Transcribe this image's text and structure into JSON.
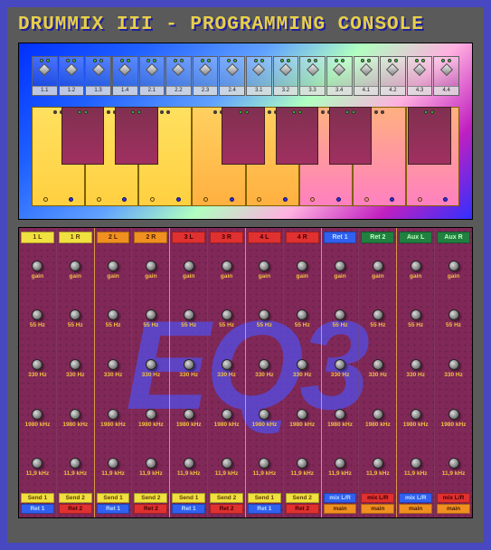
{
  "title": "DRUMMIX III - PROGRAMMING CONSOLE",
  "watermark": "EQ3",
  "pad_labels": [
    "1.1",
    "1.2",
    "1.3",
    "1.4",
    "2.1",
    "2.2",
    "2.3",
    "2.4",
    "3.1",
    "3.2",
    "3.3",
    "3.4",
    "4.1",
    "4.2",
    "4.3",
    "4.4"
  ],
  "pad_led_colors": [
    "#30e030",
    "#30e030"
  ],
  "black_key_positions": [
    7,
    19.5,
    44.5,
    57,
    69.5,
    88
  ],
  "eq": {
    "row_labels": [
      "gain",
      "55 Hz",
      "330 Hz",
      "1980 kHz",
      "11,9 kHz"
    ],
    "strips": [
      {
        "hdr": "1 L",
        "cls": "hdr-yellow",
        "f1": "Send 1",
        "f1c": "hdr-yellow",
        "f2": "Ret 1",
        "f2c": "hdr-blue"
      },
      {
        "hdr": "1 R",
        "cls": "hdr-yellow",
        "f1": "Send 2",
        "f1c": "hdr-yellow",
        "f2": "Ret 2",
        "f2c": "hdr-red"
      },
      {
        "hdr": "2 L",
        "cls": "hdr-orange",
        "f1": "Send 1",
        "f1c": "hdr-yellow",
        "f2": "Ret 1",
        "f2c": "hdr-blue"
      },
      {
        "hdr": "2 R",
        "cls": "hdr-orange",
        "f1": "Send 2",
        "f1c": "hdr-yellow",
        "f2": "Ret 2",
        "f2c": "hdr-red"
      },
      {
        "hdr": "3 L",
        "cls": "hdr-red",
        "f1": "Send 1",
        "f1c": "hdr-yellow",
        "f2": "Ret 1",
        "f2c": "hdr-blue"
      },
      {
        "hdr": "3 R",
        "cls": "hdr-red",
        "f1": "Send 2",
        "f1c": "hdr-yellow",
        "f2": "Ret 2",
        "f2c": "hdr-red"
      },
      {
        "hdr": "4 L",
        "cls": "hdr-red",
        "f1": "Send 1",
        "f1c": "hdr-yellow",
        "f2": "Ret 1",
        "f2c": "hdr-blue"
      },
      {
        "hdr": "4 R",
        "cls": "hdr-red",
        "f1": "Send 2",
        "f1c": "hdr-yellow",
        "f2": "Ret 2",
        "f2c": "hdr-red"
      },
      {
        "hdr": "Ret 1",
        "cls": "hdr-blue",
        "f1": "mix L/R",
        "f1c": "hdr-blue",
        "f2": "main",
        "f2c": "hdr-main"
      },
      {
        "hdr": "Ret 2",
        "cls": "hdr-green",
        "f1": "mix L/R",
        "f1c": "hdr-red",
        "f2": "main",
        "f2c": "hdr-main"
      },
      {
        "hdr": "Aux L",
        "cls": "hdr-green",
        "f1": "mix L/R",
        "f1c": "hdr-blue",
        "f2": "main",
        "f2c": "hdr-main"
      },
      {
        "hdr": "Aux R",
        "cls": "hdr-green",
        "f1": "mix L/R",
        "f1c": "hdr-red",
        "f2": "main",
        "f2c": "hdr-main"
      }
    ]
  },
  "colors": {
    "frame_border": "#4848c0",
    "bg": "#5a5a5a",
    "title": "#e8d048",
    "title_shadow": "#2020a0",
    "eq_bg": "#802858",
    "eq_label": "#f0c040",
    "strip_divider": "#ffc83c",
    "watermark": "rgba(80,80,240,0.7)"
  }
}
